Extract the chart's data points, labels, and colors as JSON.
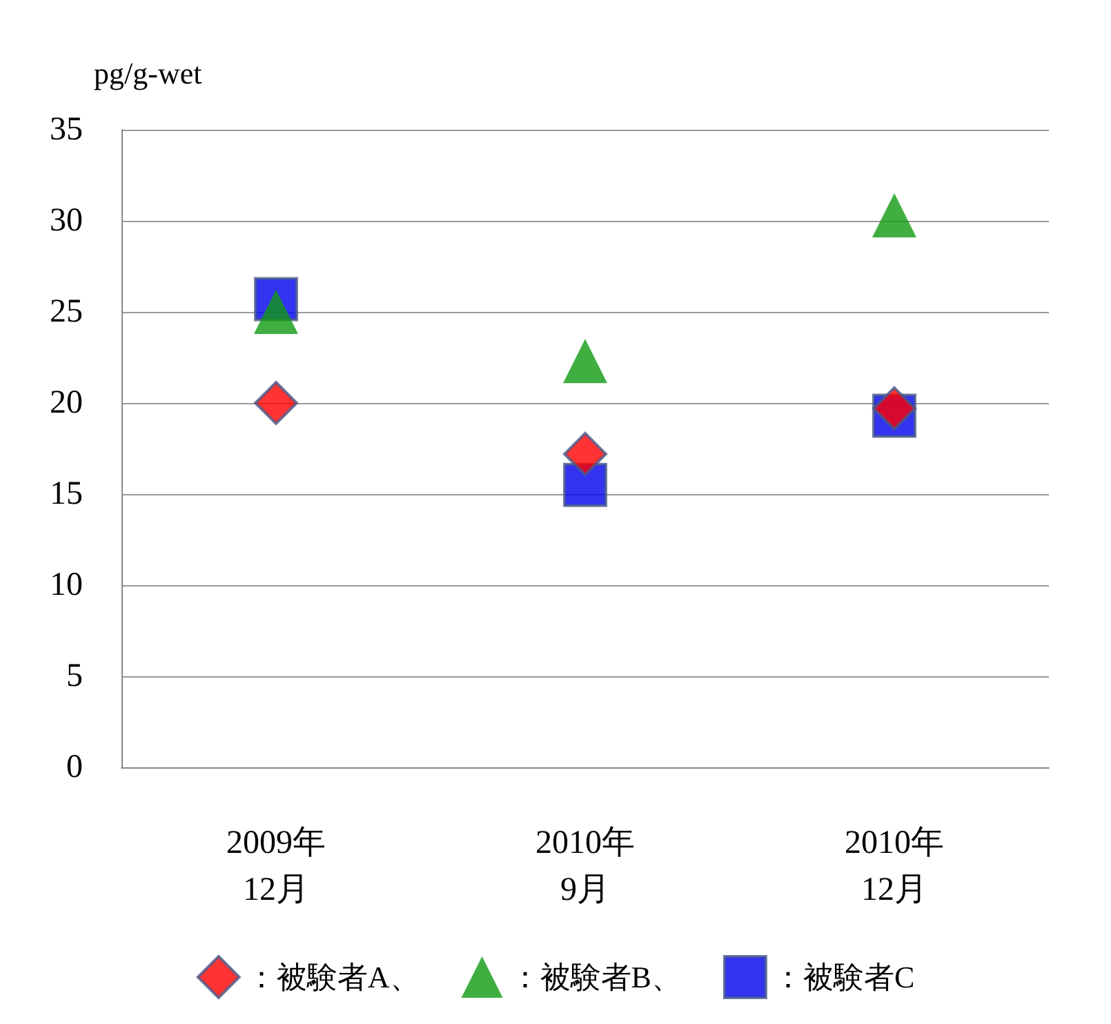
{
  "chart_data": {
    "type": "scatter",
    "ylabel": "pg/g-wet",
    "categories": [
      "2009年\n12月",
      "2010年\n9月",
      "2010年\n12月"
    ],
    "ylim": [
      0,
      35
    ],
    "yticks": [
      0,
      5,
      10,
      15,
      20,
      25,
      30,
      35
    ],
    "grid": "y",
    "legend": "bottom",
    "series": [
      {
        "name": "：被験者A、",
        "color": "#ff0000",
        "marker": "diamond",
        "values": [
          20,
          17.2,
          19.7
        ]
      },
      {
        "name": "：被験者B、",
        "color": "#109a10",
        "marker": "triangle",
        "values": [
          25,
          22.3,
          30.3
        ]
      },
      {
        "name": "：被験者C",
        "color": "#0000ee",
        "marker": "square",
        "values": [
          25.7,
          15.5,
          19.3
        ]
      }
    ]
  }
}
